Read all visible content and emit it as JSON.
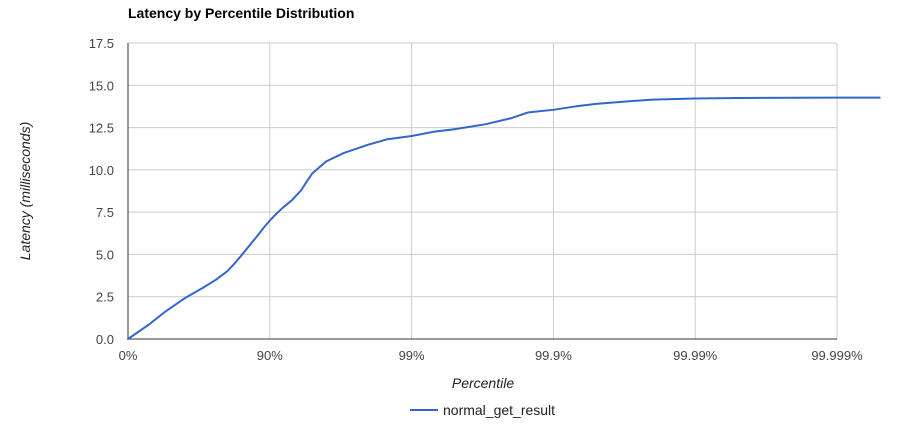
{
  "chart_data": {
    "type": "line",
    "title": "Latency by Percentile Distribution",
    "xlabel": "Percentile",
    "ylabel": "Latency (milliseconds)",
    "x_scale": "log-reciprocal (1 - percentile)",
    "x_ticks": [
      "0%",
      "90%",
      "99%",
      "99.9%",
      "99.99%",
      "99.999%"
    ],
    "y_ticks": [
      "0.0",
      "2.5",
      "5.0",
      "7.5",
      "10.0",
      "12.5",
      "15.0",
      "17.5"
    ],
    "ylim": [
      0,
      17.5
    ],
    "grid": true,
    "legend_position": "bottom",
    "series": [
      {
        "name": "normal_get_result",
        "color": "#3366cc",
        "percentiles": [
          0,
          0.3,
          0.45,
          0.6,
          0.7,
          0.76,
          0.8,
          0.82,
          0.84,
          0.86,
          0.875,
          0.89,
          0.9,
          0.91,
          0.92,
          0.93,
          0.94,
          0.945,
          0.95,
          0.96,
          0.97,
          0.98,
          0.985,
          0.99,
          0.993,
          0.995,
          0.997,
          0.998,
          0.9985,
          0.999,
          0.9993,
          0.9995,
          0.9997,
          0.9998,
          0.9999,
          0.99995,
          0.99998,
          0.99999,
          0.999995
        ],
        "values": [
          0.0,
          0.9,
          1.6,
          2.4,
          3.0,
          3.5,
          4.0,
          4.4,
          4.9,
          5.5,
          6.0,
          6.6,
          7.0,
          7.4,
          7.8,
          8.2,
          8.8,
          9.3,
          9.8,
          10.5,
          11.0,
          11.5,
          11.8,
          12.0,
          12.25,
          12.4,
          12.7,
          13.05,
          13.4,
          13.55,
          13.75,
          13.9,
          14.05,
          14.15,
          14.22,
          14.25,
          14.26,
          14.27,
          14.27
        ]
      }
    ]
  }
}
